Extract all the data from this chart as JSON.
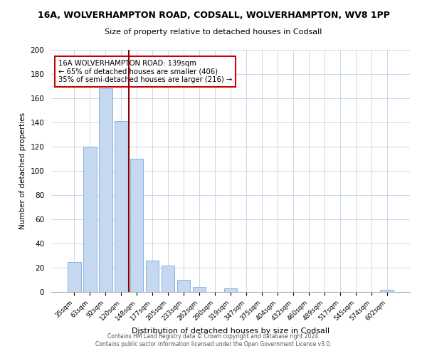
{
  "title_line1": "16A, WOLVERHAMPTON ROAD, CODSALL, WOLVERHAMPTON, WV8 1PP",
  "title_line2": "Size of property relative to detached houses in Codsall",
  "xlabel": "Distribution of detached houses by size in Codsall",
  "ylabel": "Number of detached properties",
  "bar_color": "#c5d8f0",
  "bar_edge_color": "#7aaadd",
  "categories": [
    "35sqm",
    "63sqm",
    "92sqm",
    "120sqm",
    "148sqm",
    "177sqm",
    "205sqm",
    "233sqm",
    "262sqm",
    "290sqm",
    "319sqm",
    "347sqm",
    "375sqm",
    "404sqm",
    "432sqm",
    "460sqm",
    "489sqm",
    "517sqm",
    "545sqm",
    "574sqm",
    "602sqm"
  ],
  "values": [
    25,
    120,
    168,
    141,
    110,
    26,
    22,
    10,
    4,
    0,
    3,
    0,
    0,
    0,
    0,
    0,
    0,
    0,
    0,
    0,
    2
  ],
  "ylim": [
    0,
    200
  ],
  "yticks": [
    0,
    20,
    40,
    60,
    80,
    100,
    120,
    140,
    160,
    180,
    200
  ],
  "vline_x_index": 3.5,
  "vline_color": "#8b0000",
  "annotation_title": "16A WOLVERHAMPTON ROAD: 139sqm",
  "annotation_line2": "← 65% of detached houses are smaller (406)",
  "annotation_line3": "35% of semi-detached houses are larger (216) →",
  "annotation_box_color": "#ffffff",
  "annotation_box_edge_color": "#cc0000",
  "footer_line1": "Contains HM Land Registry data © Crown copyright and database right 2024.",
  "footer_line2": "Contains public sector information licensed under the Open Government Licence v3.0.",
  "background_color": "#ffffff",
  "grid_color": "#c8d8e8"
}
